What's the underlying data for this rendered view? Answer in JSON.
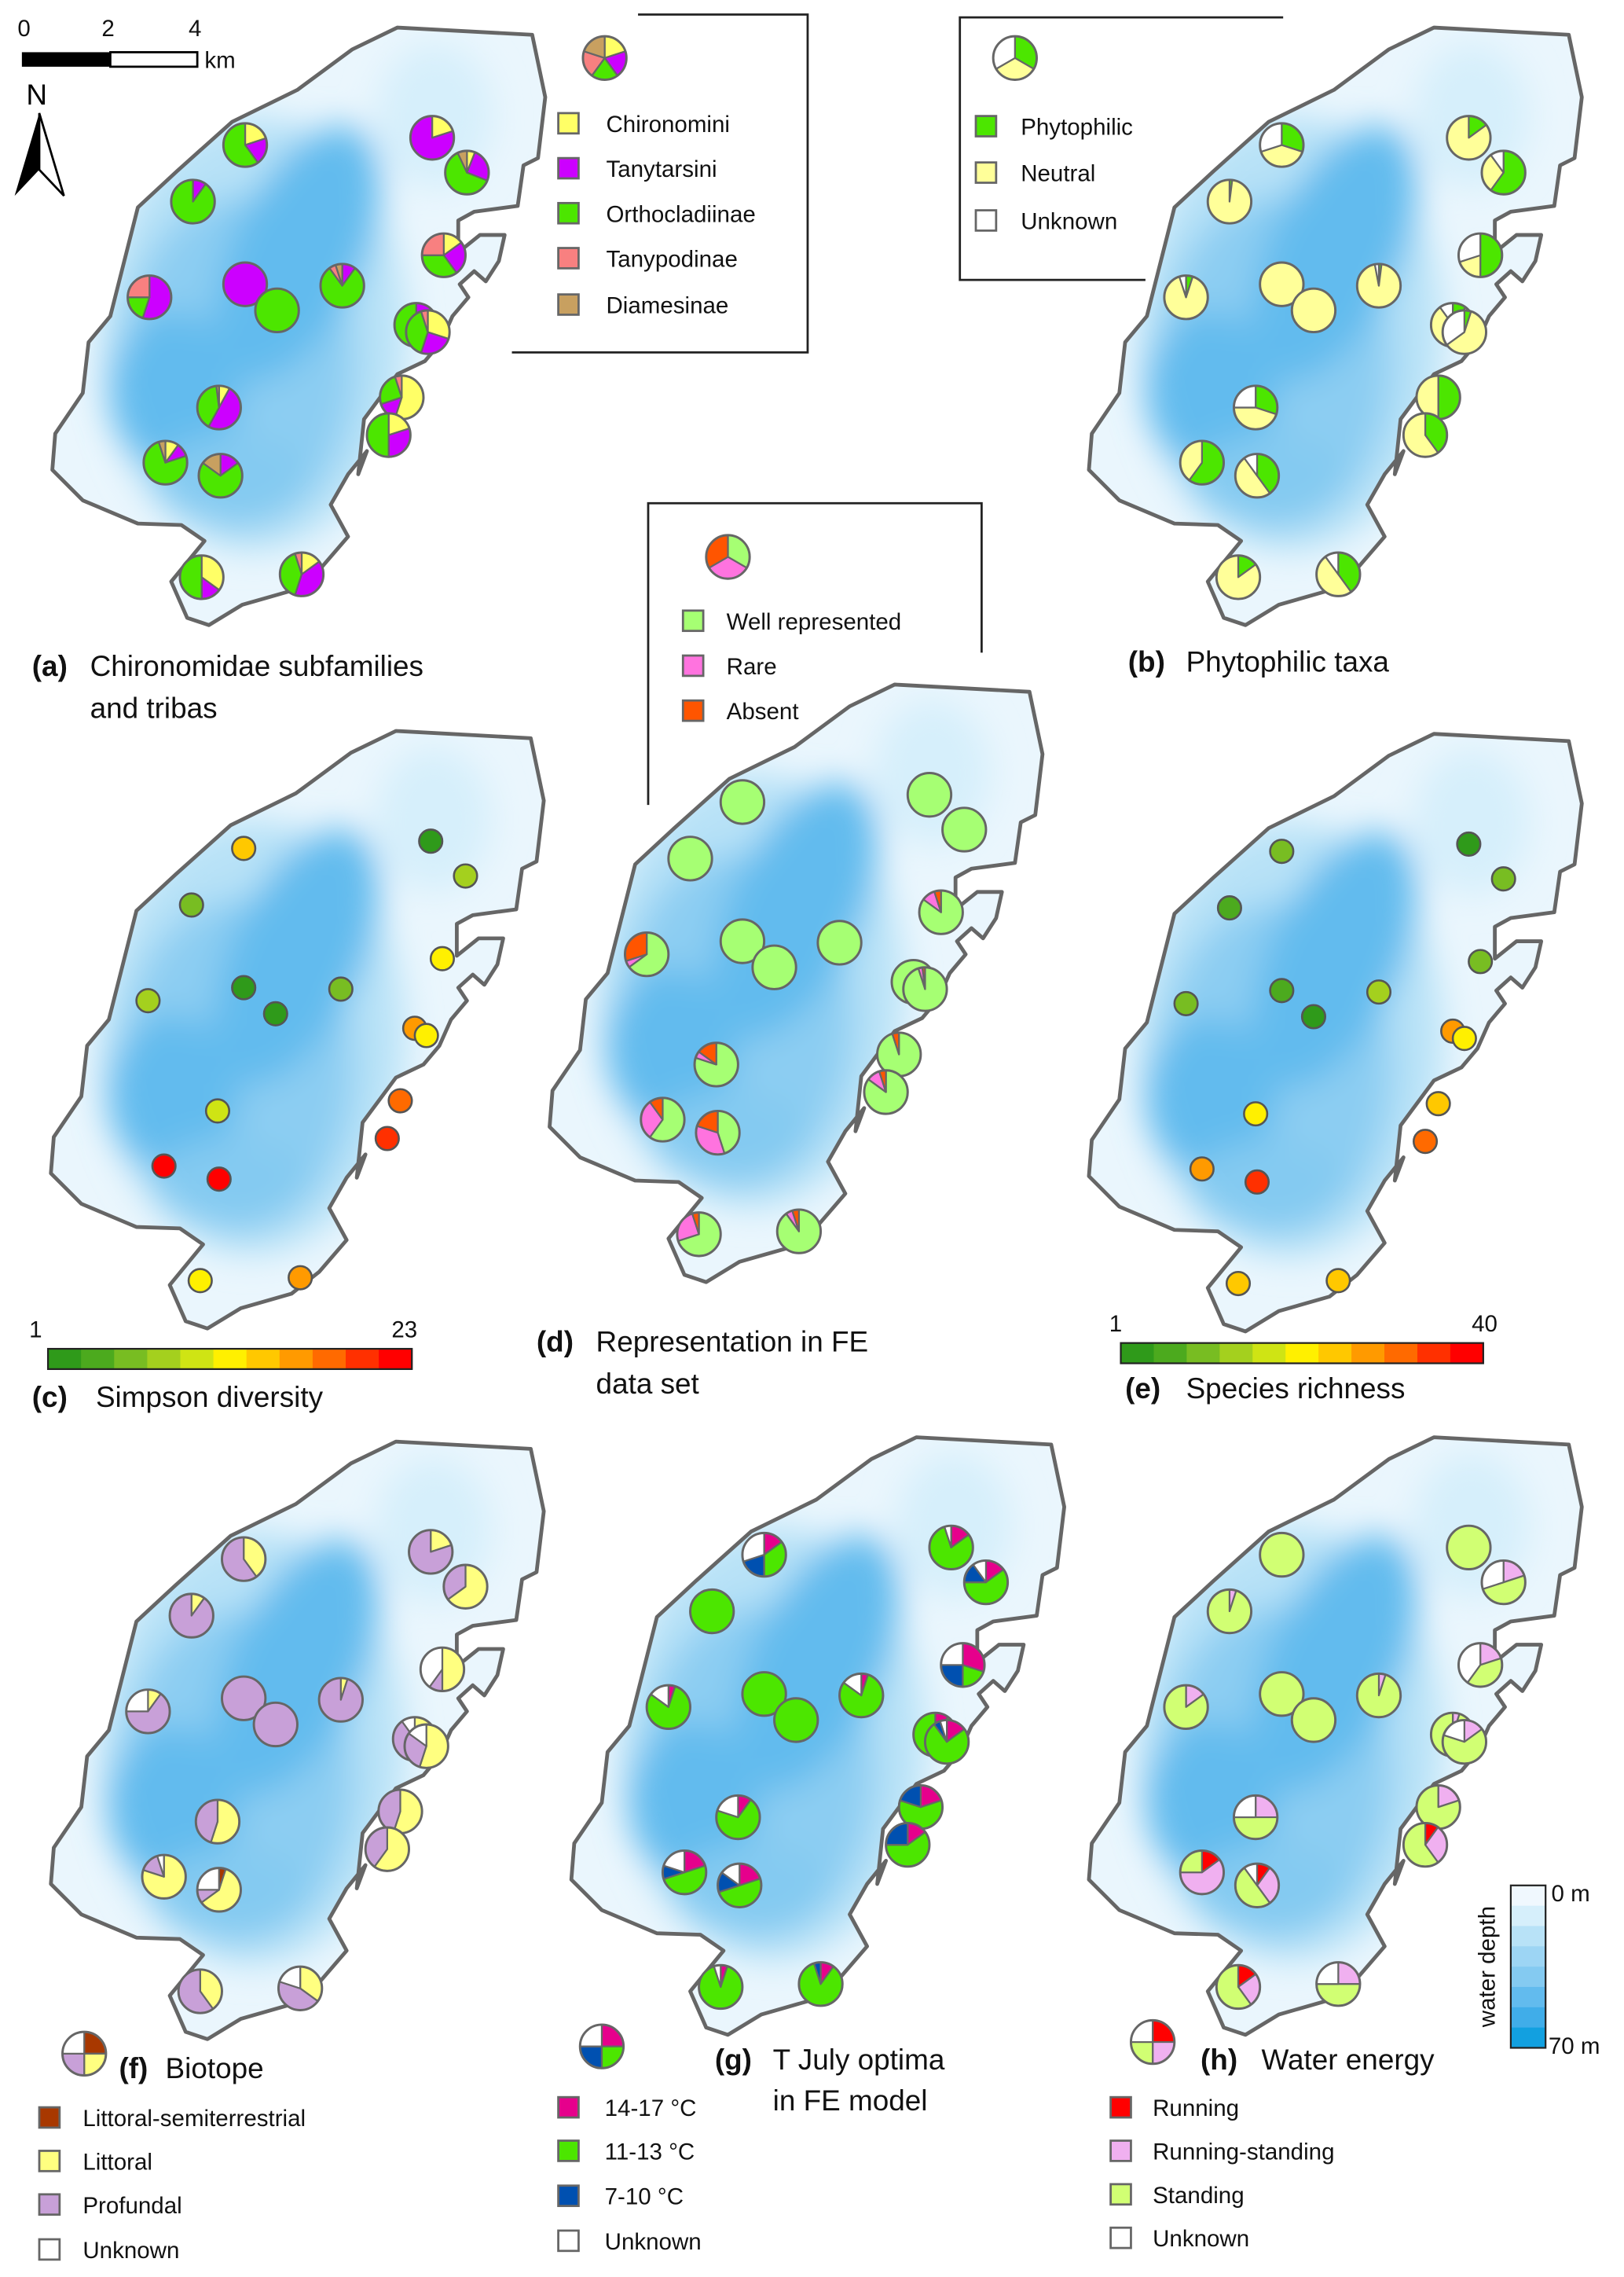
{
  "scale_bar": {
    "ticks": [
      "0",
      "2",
      "4"
    ],
    "unit": "km"
  },
  "north_label": "N",
  "depth_legend": {
    "title": "water depth",
    "top": "0 m",
    "bottom": "70 m",
    "colors": [
      "#f0f8fe",
      "#d6effb",
      "#b8e2f7",
      "#9dd5f4",
      "#84caf1",
      "#62bbee",
      "#40ade9",
      "#12a0e0"
    ]
  },
  "panels": {
    "a": {
      "label": "(a)",
      "title": [
        "Chironomidae subfamilies",
        "and tribas"
      ],
      "legend": [
        {
          "label": "Chironomini",
          "color": "#ffff66"
        },
        {
          "label": "Tanytarsini",
          "color": "#cc00ff"
        },
        {
          "label": "Orthocladiinae",
          "color": "#4ce600"
        },
        {
          "label": "Tanypodinae",
          "color": "#f88080"
        },
        {
          "label": "Diamesinae",
          "color": "#c8a060"
        }
      ],
      "pies": [
        [
          0.2,
          0.2,
          0.6,
          0,
          0
        ],
        [
          0,
          0.1,
          0.9,
          0,
          0
        ],
        [
          0.2,
          0.8,
          0,
          0,
          0
        ],
        [
          0.06,
          0.25,
          0.62,
          0,
          0.07
        ],
        [
          0.15,
          0.25,
          0.35,
          0.25,
          0
        ],
        [
          0,
          0.55,
          0.2,
          0.25,
          0
        ],
        [
          0,
          1,
          0,
          0,
          0
        ],
        [
          0,
          0,
          1,
          0,
          0
        ],
        [
          0,
          0.1,
          0.8,
          0.05,
          0.05
        ],
        [
          0,
          0.3,
          0.7,
          0,
          0
        ],
        [
          0.3,
          0.25,
          0.4,
          0.05,
          0
        ],
        [
          0.55,
          0.15,
          0.25,
          0.05,
          0
        ],
        [
          0.2,
          0.3,
          0.5,
          0,
          0
        ],
        [
          0.08,
          0.5,
          0.4,
          0,
          0.02
        ],
        [
          0.1,
          0.1,
          0.75,
          0,
          0.05
        ],
        [
          0,
          0.15,
          0.7,
          0,
          0.15
        ],
        [
          0.35,
          0.15,
          0.5,
          0,
          0
        ],
        [
          0.15,
          0.4,
          0.4,
          0.05,
          0
        ]
      ]
    },
    "b": {
      "label": "(b)",
      "title": [
        "Phytophilic taxa"
      ],
      "legend": [
        {
          "label": "Phytophilic",
          "color": "#4ce600"
        },
        {
          "label": "Neutral",
          "color": "#ffff99"
        },
        {
          "label": "Unknown",
          "color": "#ffffff"
        }
      ],
      "pies": [
        [
          0.3,
          0.4,
          0.3
        ],
        [
          0.02,
          0.98,
          0
        ],
        [
          0.15,
          0.85,
          0
        ],
        [
          0.6,
          0.3,
          0.1
        ],
        [
          0.5,
          0.2,
          0.3
        ],
        [
          0.05,
          0.9,
          0.05
        ],
        [
          0,
          1,
          0
        ],
        [
          0,
          1,
          0
        ],
        [
          0.02,
          0.95,
          0.03
        ],
        [
          0.1,
          0.8,
          0.1
        ],
        [
          0.05,
          0.6,
          0.35
        ],
        [
          0.5,
          0.5,
          0
        ],
        [
          0.4,
          0.6,
          0
        ],
        [
          0.3,
          0.45,
          0.25
        ],
        [
          0.6,
          0.4,
          0
        ],
        [
          0.4,
          0.5,
          0.1
        ],
        [
          0.15,
          0.85,
          0
        ],
        [
          0.4,
          0.5,
          0.1
        ]
      ]
    },
    "c": {
      "label": "(c)",
      "title": [
        "Simpson diversity"
      ],
      "scale_min": "1",
      "scale_max": "23",
      "min": 1,
      "max": 23,
      "values": [
        15,
        6,
        2,
        8,
        12,
        7,
        2,
        2,
        5,
        16,
        12,
        19,
        21,
        10,
        22,
        22,
        11,
        16
      ]
    },
    "d": {
      "label": "(d)",
      "title": [
        "Representation in FE",
        "data set"
      ],
      "legend": [
        {
          "label": "Well represented",
          "color": "#a6ff73"
        },
        {
          "label": "Rare",
          "color": "#ff73df"
        },
        {
          "label": "Absent",
          "color": "#ff5500"
        }
      ],
      "pies": [
        [
          1,
          0,
          0
        ],
        [
          1,
          0,
          0
        ],
        [
          1,
          0,
          0
        ],
        [
          1,
          0,
          0
        ],
        [
          0.85,
          0.1,
          0.05
        ],
        [
          0.65,
          0.05,
          0.3
        ],
        [
          1,
          0,
          0
        ],
        [
          1,
          0,
          0
        ],
        [
          1,
          0,
          0
        ],
        [
          1,
          0,
          0
        ],
        [
          0.95,
          0.03,
          0.02
        ],
        [
          0.95,
          0,
          0.05
        ],
        [
          0.85,
          0.1,
          0.05
        ],
        [
          0.8,
          0.05,
          0.15
        ],
        [
          0.6,
          0.3,
          0.1
        ],
        [
          0.45,
          0.35,
          0.2
        ],
        [
          0.7,
          0.25,
          0.05
        ],
        [
          0.9,
          0.05,
          0.05
        ]
      ]
    },
    "e": {
      "label": "(e)",
      "title": [
        "Species richness"
      ],
      "scale_min": "1",
      "scale_max": "40",
      "min": 1,
      "max": 40,
      "values": [
        8,
        5,
        2,
        9,
        9,
        7,
        3,
        2,
        12,
        30,
        20,
        26,
        32,
        22,
        30,
        36,
        25,
        25
      ]
    },
    "f": {
      "label": "(f)",
      "title": [
        "Biotope"
      ],
      "legend": [
        {
          "label": "Littoral-semiterrestrial",
          "color": "#a83800"
        },
        {
          "label": "Littoral",
          "color": "#ffff80"
        },
        {
          "label": "Profundal",
          "color": "#c8a0d8"
        },
        {
          "label": "Unknown",
          "color": "#ffffff"
        }
      ],
      "pies": [
        [
          0,
          0.4,
          0.6,
          0
        ],
        [
          0,
          0.1,
          0.9,
          0
        ],
        [
          0,
          0.2,
          0.8,
          0
        ],
        [
          0,
          0.65,
          0.35,
          0
        ],
        [
          0,
          0.5,
          0.1,
          0.4
        ],
        [
          0,
          0.1,
          0.65,
          0.25
        ],
        [
          0,
          0,
          1,
          0
        ],
        [
          0,
          0,
          1,
          0
        ],
        [
          0,
          0.05,
          0.95,
          0
        ],
        [
          0,
          0.3,
          0.6,
          0.1
        ],
        [
          0,
          0.55,
          0.3,
          0.15
        ],
        [
          0,
          0.55,
          0.45,
          0
        ],
        [
          0,
          0.6,
          0.4,
          0
        ],
        [
          0,
          0.55,
          0.45,
          0
        ],
        [
          0,
          0.8,
          0.15,
          0.05
        ],
        [
          0.05,
          0.6,
          0.1,
          0.25
        ],
        [
          0,
          0.4,
          0.6,
          0
        ],
        [
          0,
          0.35,
          0.45,
          0.2
        ]
      ]
    },
    "g": {
      "label": "(g)",
      "title": [
        "T July optima",
        "in FE model"
      ],
      "legend": [
        {
          "label": "14-17 °C",
          "color": "#e6008c"
        },
        {
          "label": "11-13 °C",
          "color": "#4ce600"
        },
        {
          "label": "7-10 °C",
          "color": "#0050b0"
        },
        {
          "label": "Unknown",
          "color": "#ffffff"
        }
      ],
      "pies": [
        [
          0.15,
          0.35,
          0.2,
          0.3
        ],
        [
          0,
          1,
          0,
          0
        ],
        [
          0.15,
          0.8,
          0,
          0.05
        ],
        [
          0.15,
          0.6,
          0.15,
          0.1
        ],
        [
          0.3,
          0.2,
          0.25,
          0.25
        ],
        [
          0.05,
          0.8,
          0,
          0.15
        ],
        [
          0,
          1,
          0,
          0
        ],
        [
          0,
          1,
          0,
          0
        ],
        [
          0.05,
          0.8,
          0,
          0.15
        ],
        [
          0.1,
          0.9,
          0,
          0
        ],
        [
          0.15,
          0.75,
          0.05,
          0.05
        ],
        [
          0.2,
          0.6,
          0.2,
          0
        ],
        [
          0.15,
          0.6,
          0.25,
          0
        ],
        [
          0.1,
          0.7,
          0,
          0.2
        ],
        [
          0.2,
          0.5,
          0.1,
          0.2
        ],
        [
          0.2,
          0.5,
          0.15,
          0.15
        ],
        [
          0.05,
          0.9,
          0,
          0.05
        ],
        [
          0.1,
          0.85,
          0.05,
          0
        ]
      ]
    },
    "h": {
      "label": "(h)",
      "title": [
        "Water energy"
      ],
      "legend": [
        {
          "label": "Running",
          "color": "#ff0000"
        },
        {
          "label": "Running-standing",
          "color": "#f0b0f0"
        },
        {
          "label": "Standing",
          "color": "#d1ff73"
        },
        {
          "label": "Unknown",
          "color": "#ffffff"
        }
      ],
      "pies": [
        [
          0,
          0,
          1,
          0
        ],
        [
          0,
          0.05,
          0.95,
          0
        ],
        [
          0,
          0,
          1,
          0
        ],
        [
          0,
          0.2,
          0.5,
          0.3
        ],
        [
          0,
          0.2,
          0.4,
          0.4
        ],
        [
          0,
          0.15,
          0.85,
          0
        ],
        [
          0,
          0,
          1,
          0
        ],
        [
          0,
          0,
          1,
          0
        ],
        [
          0,
          0.05,
          0.95,
          0
        ],
        [
          0,
          0.05,
          0.95,
          0
        ],
        [
          0,
          0.15,
          0.65,
          0.2
        ],
        [
          0,
          0.2,
          0.8,
          0
        ],
        [
          0.1,
          0.3,
          0.6,
          0
        ],
        [
          0,
          0.25,
          0.5,
          0.25
        ],
        [
          0.15,
          0.6,
          0.25,
          0
        ],
        [
          0.1,
          0.3,
          0.5,
          0.1
        ],
        [
          0.15,
          0.25,
          0.6,
          0
        ],
        [
          0,
          0.25,
          0.5,
          0.25
        ]
      ]
    }
  },
  "color_ramp": [
    "#2f9a1a",
    "#4caa1e",
    "#78bd22",
    "#a4d01e",
    "#cfe414",
    "#fff000",
    "#ffc800",
    "#ff9a00",
    "#ff6a00",
    "#ff3000",
    "#ff0000"
  ]
}
